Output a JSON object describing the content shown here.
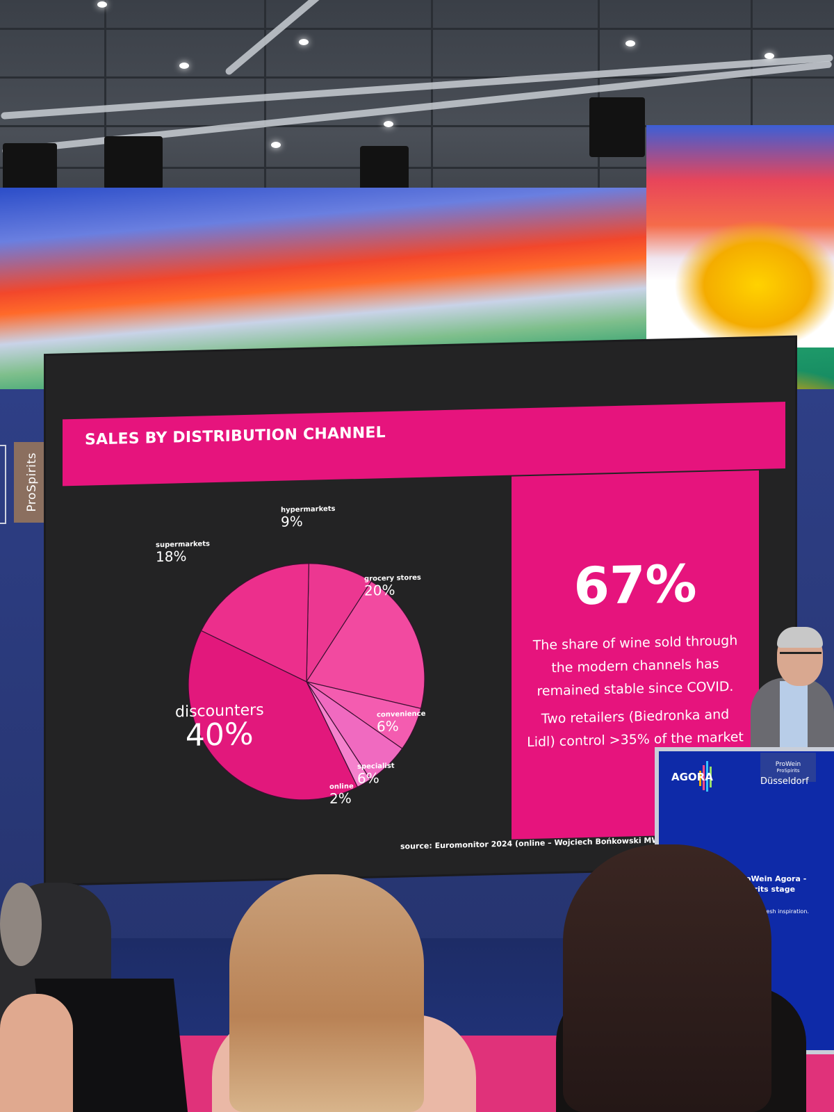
{
  "slide": {
    "title": "SALES BY DISTRIBUTION CHANNEL",
    "stat": "67%",
    "stat_text_1": "The share of wine sold through the modern channels has remained stable since COVID.",
    "stat_text_2": "Two retailers (Biedronka and Lidl) control >35% of the market",
    "source": "source: Euromonitor 2024 (online – Wojciech Bońkowski MW"
  },
  "chart_data": {
    "type": "pie",
    "slices": [
      {
        "name": "hypermarkets",
        "label": "9%",
        "value": 9,
        "color": "#ec3791"
      },
      {
        "name": "grocery stores",
        "label": "20%",
        "value": 20,
        "color": "#f24aa0"
      },
      {
        "name": "convenience",
        "label": "6%",
        "value": 6,
        "color": "#f45cb0"
      },
      {
        "name": "specialist",
        "label": "6%",
        "value": 6,
        "color": "#f06ac0"
      },
      {
        "name": "online",
        "label": "2%",
        "value": 2,
        "color": "#f582cd"
      },
      {
        "name": "discounters",
        "label": "40%",
        "value": 40,
        "color": "#e2187c"
      },
      {
        "name": "supermarkets",
        "label": "18%",
        "value": 18,
        "color": "#ec2f8c"
      }
    ]
  },
  "logos": {
    "prospirits": "ProSpirits"
  },
  "podium": {
    "agora": "AGORA",
    "prowein": "ProWein",
    "prospirits_small": "ProSpirits",
    "city": "Düsseldorf",
    "welcome_line1": "me to ProWein Agora -",
    "welcome_line2": "wine & spirits stage",
    "subline": "d questions  and fresh inspiration."
  }
}
